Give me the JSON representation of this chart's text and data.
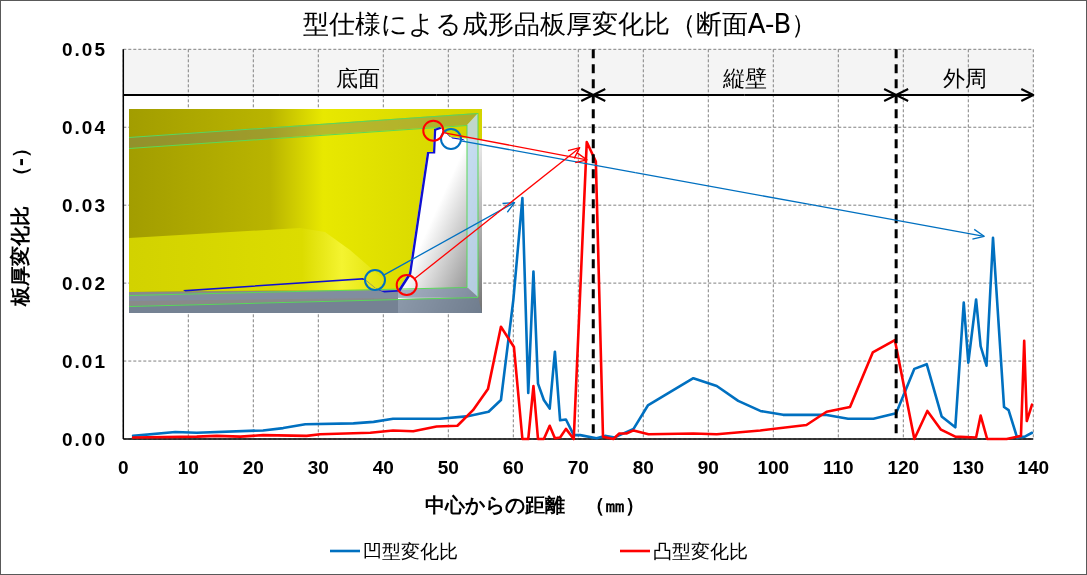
{
  "chart_data": {
    "type": "line",
    "title": "型仕様による成形品板厚変化比（断面A-B）",
    "xlabel": "中心からの距離　（㎜）",
    "ylabel": "板厚変化比　（-）",
    "xlim": [
      0,
      140
    ],
    "xticks": [
      0,
      10,
      20,
      30,
      40,
      50,
      60,
      70,
      80,
      90,
      100,
      110,
      120,
      130,
      140
    ],
    "ylim": [
      0,
      0.05
    ],
    "yticks": [
      {
        "value": 0,
        "label": "0.00"
      },
      {
        "value": 0.01,
        "label": "0.01"
      },
      {
        "value": 0.02,
        "label": "0.02"
      },
      {
        "value": 0.03,
        "label": "0.03"
      },
      {
        "value": 0.04,
        "label": "0.04"
      },
      {
        "value": 0.05,
        "label": "0.05"
      }
    ],
    "grid": true,
    "legend": "bottom",
    "series": [
      {
        "name": "凹型変化比",
        "color": "#0070c0",
        "x": [
          1.5,
          8.0,
          11.3,
          21.5,
          24.6,
          28.0,
          35.4,
          38.5,
          41.5,
          48.7,
          52.8,
          56.2,
          58.1,
          60.0,
          61.4,
          62.3,
          63.1,
          63.8,
          64.7,
          65.6,
          66.4,
          67.2,
          68.1,
          69.3,
          70.3,
          72.8,
          74.1,
          75.6,
          78.5,
          80.7,
          84.1,
          87.7,
          91.3,
          94.6,
          98.0,
          101.5,
          108.0,
          111.5,
          115.4,
          118.9,
          121.7,
          123.6,
          125.9,
          128.0,
          129.3,
          130.0,
          131.2,
          131.9,
          132.8,
          133.8,
          135.5,
          136.2,
          137.5,
          138.7,
          139.8
        ],
        "values": [
          0.0004,
          0.0009,
          0.0008,
          0.0011,
          0.0014,
          0.0019,
          0.002,
          0.0022,
          0.0026,
          0.0026,
          0.0029,
          0.0035,
          0.005,
          0.0178,
          0.0309,
          0.0059,
          0.0215,
          0.0071,
          0.005,
          0.0039,
          0.0112,
          0.0024,
          0.0025,
          0.0005,
          0.0005,
          0.0001,
          0.0004,
          0.0002,
          0.0013,
          0.0043,
          0.006,
          0.0078,
          0.0068,
          0.0049,
          0.0036,
          0.0031,
          0.0031,
          0.0026,
          0.0026,
          0.0033,
          0.009,
          0.0096,
          0.0029,
          0.0015,
          0.0175,
          0.0098,
          0.0179,
          0.0119,
          0.0094,
          0.0258,
          0.0041,
          0.0037,
          0.0002,
          0.0003,
          0.0008
        ]
      },
      {
        "name": "凸型変化比",
        "color": "#ff0000",
        "x": [
          1.5,
          11.3,
          14.4,
          18.0,
          21.5,
          28.2,
          30.3,
          38.0,
          41.5,
          44.6,
          48.2,
          51.4,
          53.8,
          56.1,
          58.1,
          60.1,
          61.4,
          62.3,
          63.1,
          63.8,
          64.7,
          65.6,
          66.4,
          67.2,
          68.1,
          69.3,
          71.3,
          72.7,
          73.8,
          75.4,
          76.3,
          77.4,
          78.5,
          80.8,
          87.7,
          91.3,
          98.0,
          105.1,
          108.2,
          111.8,
          115.3,
          118.7,
          121.7,
          123.7,
          125.8,
          128.0,
          131.2,
          131.9,
          132.9,
          135.9,
          138.1,
          138.6,
          139.0,
          139.8
        ],
        "values": [
          0.0002,
          0.0003,
          0.0004,
          0.0003,
          0.0005,
          0.0004,
          0.0006,
          0.0008,
          0.0011,
          0.001,
          0.0016,
          0.0017,
          0.0037,
          0.0064,
          0.0144,
          0.0118,
          0.0,
          0.0,
          0.0068,
          0.0,
          0.0,
          0.0017,
          0.0001,
          0.0002,
          0.0013,
          0.0,
          0.0381,
          0.0356,
          0.0003,
          0.0,
          0.0007,
          0.0007,
          0.0011,
          0.0006,
          0.0007,
          0.0006,
          0.0011,
          0.0018,
          0.0035,
          0.0041,
          0.0111,
          0.0127,
          0.0,
          0.0036,
          0.0012,
          0.0003,
          0.0002,
          0.003,
          0.0,
          0.0,
          0.0004,
          0.0126,
          0.0023,
          0.0044
        ]
      }
    ],
    "ref_lines": [
      {
        "axis": "x",
        "value": 72.3,
        "color": "#000000",
        "line_style": "dashed"
      },
      {
        "axis": "x",
        "value": 118.9,
        "color": "#000000",
        "line_style": "dashed"
      }
    ],
    "bands": [
      {
        "axis": "x",
        "from": 0,
        "to": 72.3,
        "label": "底面",
        "color": "#f4f4f4"
      },
      {
        "axis": "x",
        "from": 72.3,
        "to": 118.9,
        "label": "縦壁",
        "color": "#f4f4f4"
      },
      {
        "axis": "x",
        "from": 118.9,
        "to": 140,
        "label": "外周",
        "color": "#f4f4f4"
      }
    ]
  }
}
